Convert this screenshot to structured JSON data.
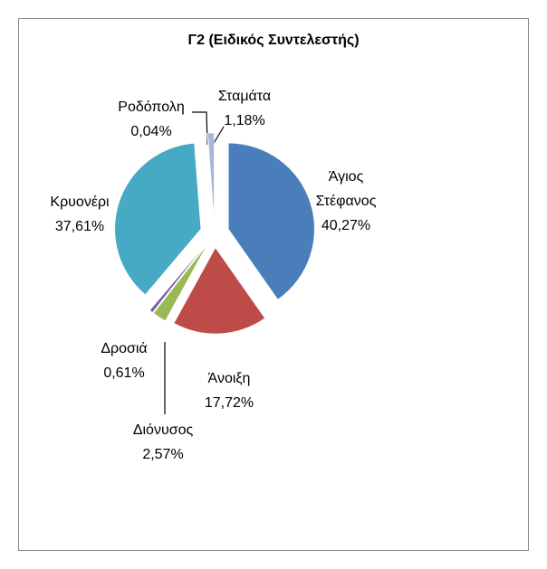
{
  "chart_data": {
    "type": "pie",
    "title": "Γ2 (Ειδικός Συντελεστής)",
    "categories": [
      "Άγιος Στέφανος",
      "Άνοιξη",
      "Διόνυσος",
      "Δροσιά",
      "Κρυονέρι",
      "Ροδόπολη",
      "Σταμάτα"
    ],
    "values": [
      40.27,
      17.72,
      2.57,
      0.61,
      37.61,
      0.04,
      1.18
    ],
    "value_labels": [
      "40,27%",
      "17,72%",
      "2,57%",
      "0,61%",
      "37,61%",
      "0,04%",
      "1,18%"
    ],
    "colors": [
      "#4a7ebb",
      "#be4b48",
      "#98b954",
      "#7d60a0",
      "#46aac5",
      "#f79646",
      "#a5b6d6"
    ]
  }
}
